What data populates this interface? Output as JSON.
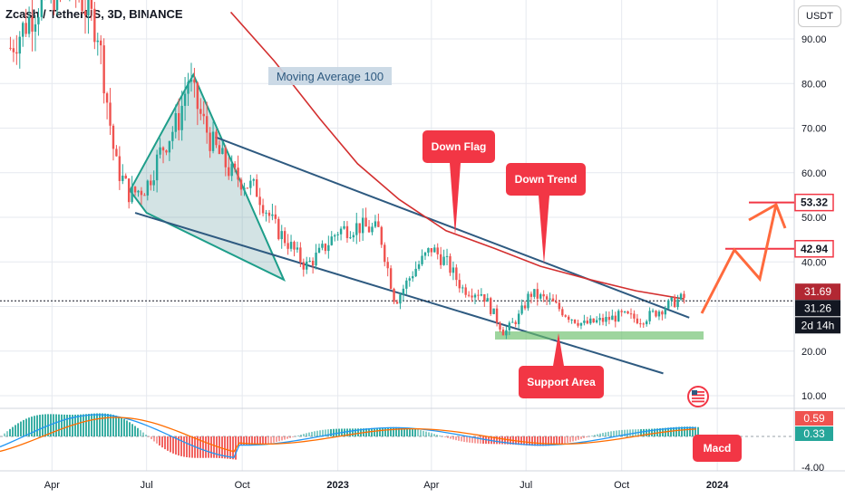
{
  "header": {
    "title": "Zcash / TetherUS, 3D, BINANCE",
    "currency": "USDT"
  },
  "chart_data": {
    "type": "line",
    "title": "Zcash / TetherUS, 3D, BINANCE",
    "price_axis_ticks": [
      "90.00",
      "80.00",
      "70.00",
      "60.00",
      "50.00",
      "40.00",
      "30.00",
      "20.00",
      "10.00"
    ],
    "price_axis_values": [
      90,
      80,
      70,
      60,
      50,
      40,
      30,
      20,
      10
    ],
    "ylim": [
      4,
      95
    ],
    "time_axis_ticks": [
      "Apr",
      "Jul",
      "Oct",
      "2023",
      "Apr",
      "Jul",
      "Oct",
      "2024"
    ],
    "time_axis_values": [
      "2022-04-01",
      "2022-07-01",
      "2022-10-01",
      "2023-01-01",
      "2023-04-01",
      "2023-07-01",
      "2023-10-01",
      "2024-01-01"
    ],
    "xlim": [
      "2022-02-10",
      "2024-03-15"
    ],
    "series": [
      {
        "name": "Moving Average 100",
        "color": "#d32f2f",
        "x": [
          "2022-09-20",
          "2022-11-01",
          "2022-12-15",
          "2023-01-20",
          "2023-03-01",
          "2023-04-15",
          "2023-06-01",
          "2023-07-15",
          "2023-09-01",
          "2023-10-15",
          "2023-11-30"
        ],
        "values": [
          96,
          85,
          72,
          62,
          54,
          47,
          43,
          39,
          36,
          33.5,
          31.69
        ]
      }
    ],
    "price_path": {
      "x": [
        "2022-02-20",
        "2022-03-20",
        "2022-04-20",
        "2022-05-15",
        "2022-06-01",
        "2022-06-15",
        "2022-07-01",
        "2022-07-15",
        "2022-08-01",
        "2022-08-10",
        "2022-08-20",
        "2022-09-01",
        "2022-09-20",
        "2022-10-15",
        "2022-11-01",
        "2022-11-15",
        "2022-12-01",
        "2022-12-15",
        "2023-01-01",
        "2023-01-20",
        "2023-02-10",
        "2023-02-25",
        "2023-03-15",
        "2023-04-01",
        "2023-04-15",
        "2023-05-01",
        "2023-05-20",
        "2023-06-10",
        "2023-06-25",
        "2023-07-05",
        "2023-07-25",
        "2023-08-10",
        "2023-08-25",
        "2023-09-15",
        "2023-10-01",
        "2023-10-20",
        "2023-11-05",
        "2023-11-20",
        "2023-12-01"
      ],
      "values": [
        88,
        98,
        103,
        92,
        62,
        55,
        57,
        65,
        72,
        81,
        74,
        67,
        60,
        56,
        48,
        44,
        39,
        42,
        47,
        48,
        47,
        31,
        38,
        43,
        40,
        34,
        33,
        24,
        28,
        33,
        31,
        28,
        26,
        27,
        28,
        27,
        29,
        31,
        32
      ]
    },
    "annotations": [
      "Moving Average 100",
      "Down Flag",
      "Down Trend",
      "Support Area",
      "Macd"
    ],
    "price_labels": [
      {
        "text": "53.32",
        "value": 53.32,
        "color": "#f23645",
        "style": "outline"
      },
      {
        "text": "42.94",
        "value": 42.94,
        "color": "#f23645",
        "style": "outline"
      },
      {
        "text": "31.69",
        "value": 31.69,
        "color": "#b22833",
        "style": "filled"
      },
      {
        "text": "31.26",
        "value": 31.26,
        "color": "#131722",
        "style": "filled"
      },
      {
        "text": "2d 14h",
        "value": 27.6,
        "color": "#131722",
        "style": "filled"
      }
    ],
    "macd": {
      "axis_ticks": [
        "4.00",
        "-4.00"
      ],
      "labels": [
        {
          "text": "0.59",
          "color": "#ef5350"
        },
        {
          "text": "0.33",
          "color": "#26a69a"
        }
      ]
    },
    "grid": true
  }
}
